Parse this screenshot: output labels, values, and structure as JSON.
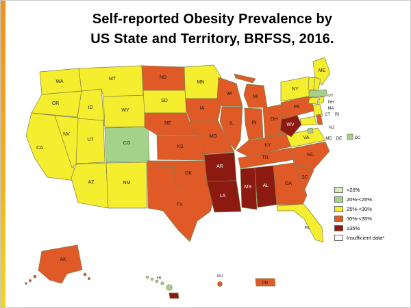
{
  "title": {
    "line1": "Self-reported Obesity Prevalence by",
    "line2": "US State and Territory, BRFSS, 2016."
  },
  "colors": {
    "lt20": "#d7ecc3",
    "c20_25": "#a5d28b",
    "c25_30": "#f5ee2e",
    "c30_35": "#e05a28",
    "ge35": "#8d1a10",
    "insufficient": "#ffffff"
  },
  "legend": [
    {
      "key": "lt20",
      "label": "<20%",
      "hatched": true
    },
    {
      "key": "c20_25",
      "label": "20%-<25%",
      "hatched": false
    },
    {
      "key": "c25_30",
      "label": "25%-<30%",
      "hatched": false
    },
    {
      "key": "c30_35",
      "label": "30%-<35%",
      "hatched": false
    },
    {
      "key": "ge35",
      "label": "≥35%",
      "hatched": false
    },
    {
      "key": "insufficient",
      "label": "Insufficient data*",
      "hatched": false
    }
  ],
  "states": [
    {
      "abbr": "WA",
      "category": "c25_30"
    },
    {
      "abbr": "OR",
      "category": "c25_30"
    },
    {
      "abbr": "CA",
      "category": "c25_30"
    },
    {
      "abbr": "NV",
      "category": "c25_30"
    },
    {
      "abbr": "ID",
      "category": "c25_30"
    },
    {
      "abbr": "MT",
      "category": "c25_30"
    },
    {
      "abbr": "WY",
      "category": "c25_30"
    },
    {
      "abbr": "UT",
      "category": "c25_30"
    },
    {
      "abbr": "CO",
      "category": "c20_25"
    },
    {
      "abbr": "AZ",
      "category": "c25_30"
    },
    {
      "abbr": "NM",
      "category": "c25_30"
    },
    {
      "abbr": "ND",
      "category": "c30_35"
    },
    {
      "abbr": "SD",
      "category": "c25_30"
    },
    {
      "abbr": "NE",
      "category": "c30_35"
    },
    {
      "abbr": "KS",
      "category": "c30_35"
    },
    {
      "abbr": "OK",
      "category": "c30_35"
    },
    {
      "abbr": "TX",
      "category": "c30_35"
    },
    {
      "abbr": "MN",
      "category": "c25_30"
    },
    {
      "abbr": "IA",
      "category": "c30_35"
    },
    {
      "abbr": "MO",
      "category": "c30_35"
    },
    {
      "abbr": "AR",
      "category": "ge35"
    },
    {
      "abbr": "LA",
      "category": "ge35"
    },
    {
      "abbr": "WI",
      "category": "c30_35"
    },
    {
      "abbr": "IL",
      "category": "c30_35"
    },
    {
      "abbr": "MI",
      "category": "c30_35"
    },
    {
      "abbr": "IN",
      "category": "c30_35"
    },
    {
      "abbr": "OH",
      "category": "c30_35"
    },
    {
      "abbr": "KY",
      "category": "c30_35"
    },
    {
      "abbr": "TN",
      "category": "c30_35"
    },
    {
      "abbr": "MS",
      "category": "ge35"
    },
    {
      "abbr": "AL",
      "category": "ge35"
    },
    {
      "abbr": "GA",
      "category": "c30_35"
    },
    {
      "abbr": "FL",
      "category": "c25_30"
    },
    {
      "abbr": "SC",
      "category": "c30_35"
    },
    {
      "abbr": "NC",
      "category": "c30_35"
    },
    {
      "abbr": "VA",
      "category": "c25_30"
    },
    {
      "abbr": "WV",
      "category": "ge35"
    },
    {
      "abbr": "PA",
      "category": "c30_35"
    },
    {
      "abbr": "NY",
      "category": "c25_30"
    },
    {
      "abbr": "ME",
      "category": "c25_30"
    },
    {
      "abbr": "VT",
      "category": "c25_30"
    },
    {
      "abbr": "NH",
      "category": "c25_30"
    },
    {
      "abbr": "MA",
      "category": "c20_25"
    },
    {
      "abbr": "CT",
      "category": "c25_30"
    },
    {
      "abbr": "RI",
      "category": "c25_30"
    },
    {
      "abbr": "NJ",
      "category": "c25_30"
    },
    {
      "abbr": "MD",
      "category": "c25_30"
    },
    {
      "abbr": "DE",
      "category": "c30_35"
    },
    {
      "abbr": "DC",
      "category": "c20_25"
    },
    {
      "abbr": "AK",
      "category": "c30_35"
    },
    {
      "abbr": "HI",
      "category": "c20_25"
    }
  ],
  "territories": [
    {
      "abbr": "GU",
      "category": "c30_35"
    },
    {
      "abbr": "PR",
      "category": "c30_35"
    }
  ]
}
